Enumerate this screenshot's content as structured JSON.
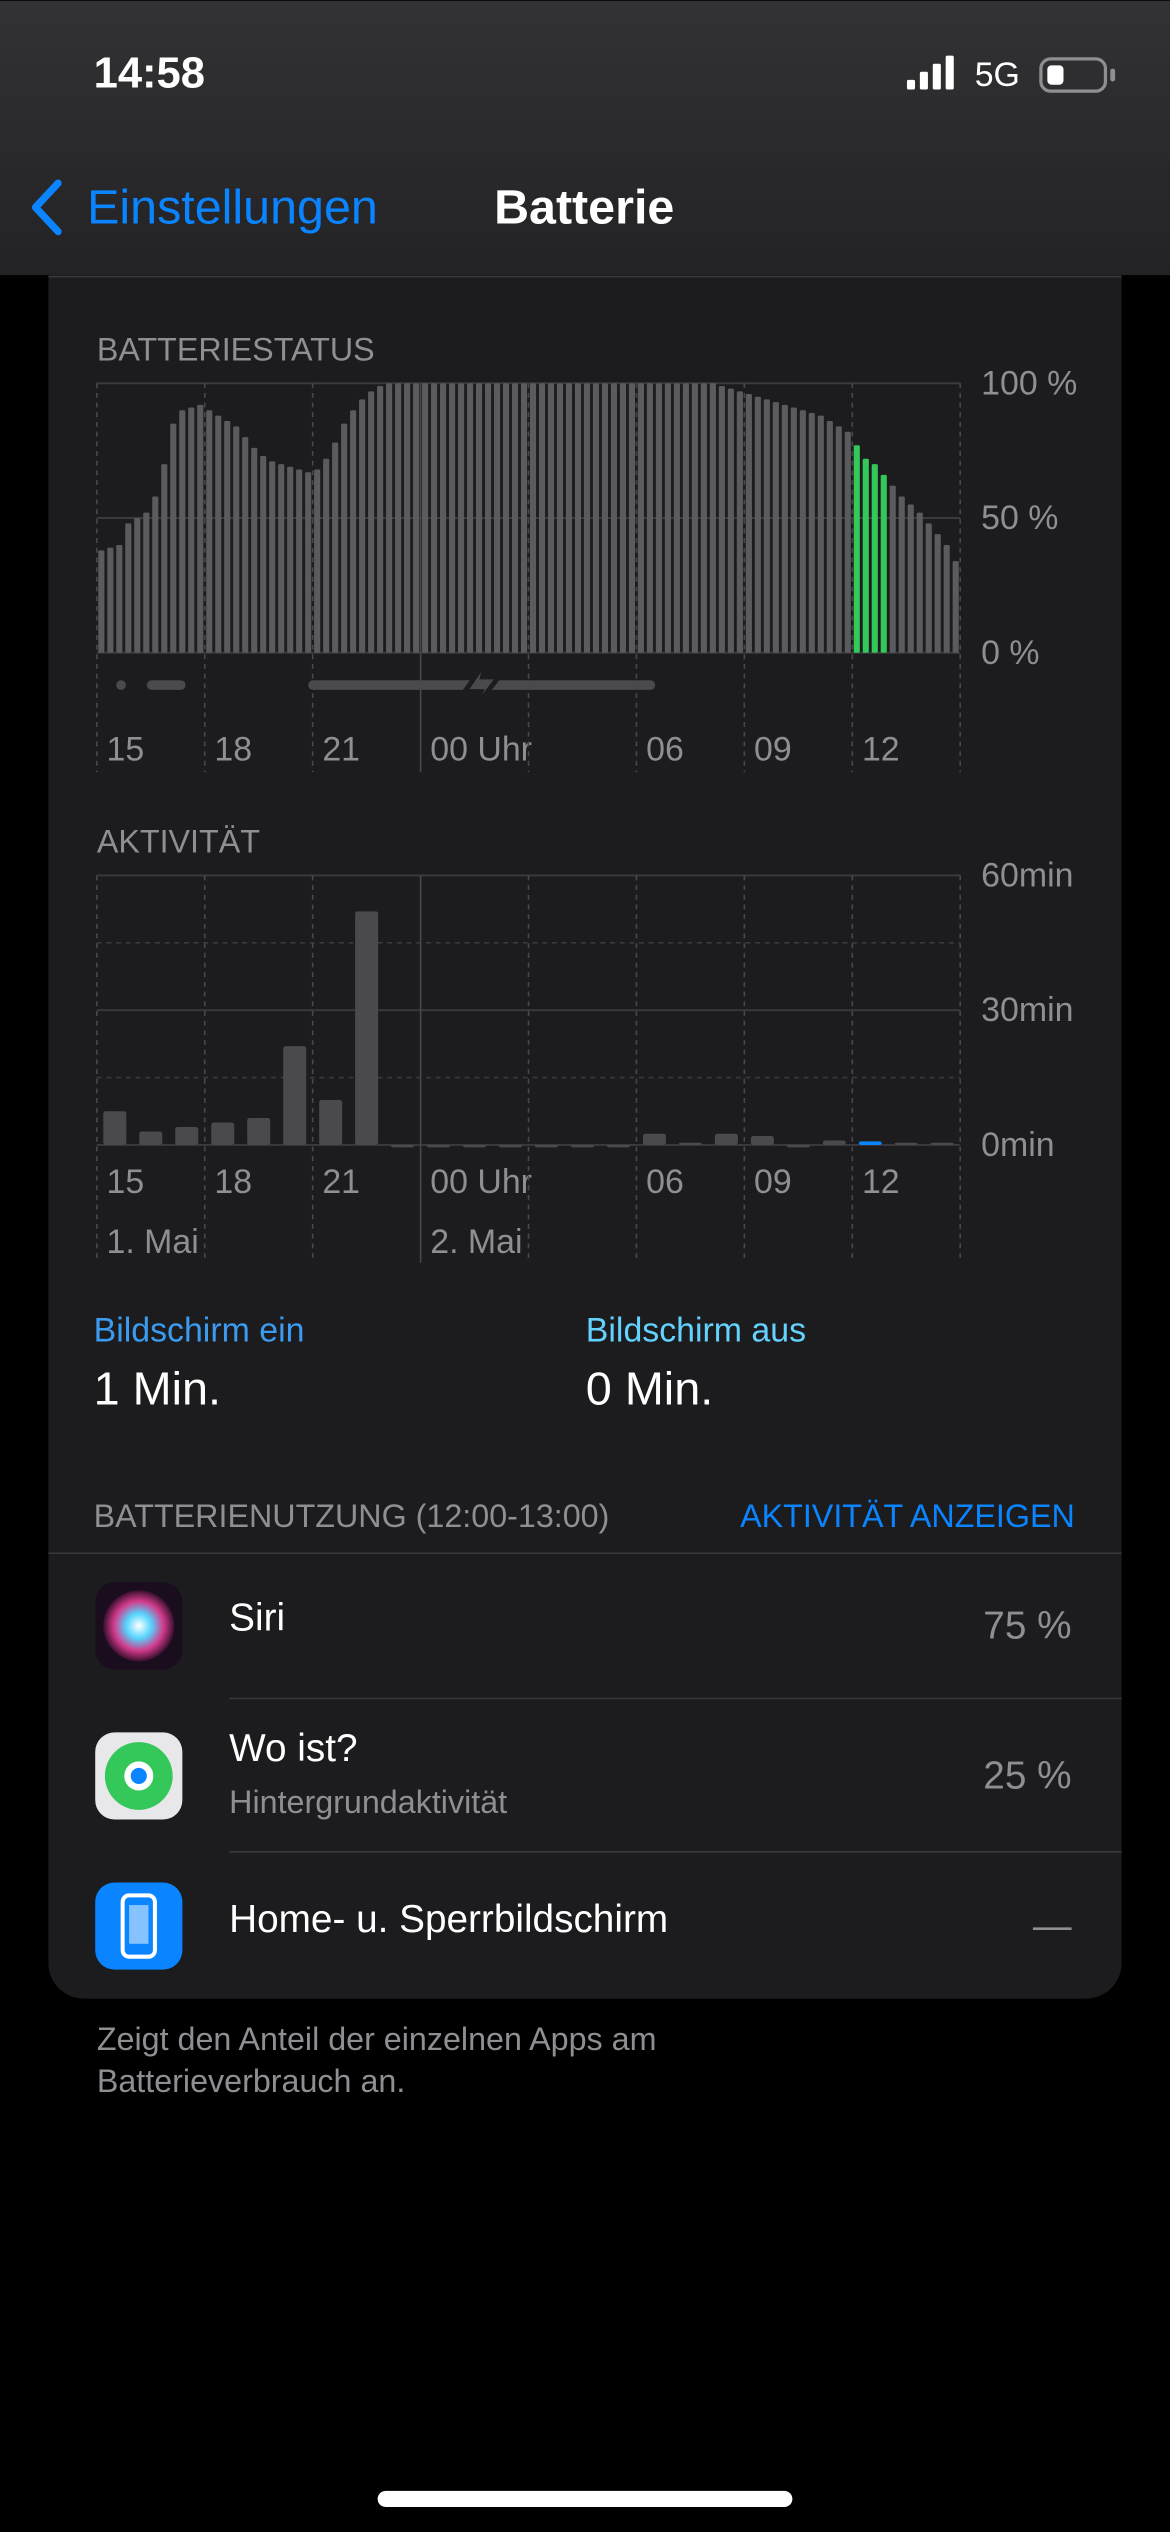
{
  "status_bar": {
    "time": "14:58",
    "network": "5G"
  },
  "nav": {
    "back": "Einstellungen",
    "title": "Batterie"
  },
  "chart_data": [
    {
      "type": "bar",
      "title": "BATTERIESTATUS",
      "x_labels": [
        "15",
        "18",
        "21",
        "00 Uhr",
        null,
        "06",
        "09",
        "12",
        null
      ],
      "series": [
        {
          "color": "#5b5b5f",
          "values": [
            38,
            39,
            40,
            48,
            50,
            52,
            58,
            70,
            85,
            90,
            91,
            92,
            90,
            88,
            86,
            84,
            80,
            76,
            73,
            71,
            70,
            69,
            68,
            67,
            68,
            72,
            78,
            85,
            90,
            94,
            97,
            99,
            100,
            100,
            100,
            100,
            100,
            100,
            100,
            100,
            100,
            100,
            100,
            100,
            100,
            100,
            100,
            100,
            100,
            100,
            100,
            100,
            100,
            100,
            100,
            100,
            100,
            100,
            100,
            100,
            100,
            100,
            100,
            100,
            100,
            100,
            100,
            100,
            100,
            99,
            98,
            97,
            96,
            95,
            94,
            93,
            92,
            91,
            90,
            89,
            88,
            86,
            84,
            82,
            null,
            null,
            null,
            null,
            62,
            58,
            55,
            52,
            48,
            44,
            40,
            34
          ]
        },
        {
          "color": "#34c759",
          "values": [
            null,
            null,
            null,
            null,
            null,
            null,
            null,
            null,
            null,
            null,
            null,
            null,
            null,
            null,
            null,
            null,
            null,
            null,
            null,
            null,
            null,
            null,
            null,
            null,
            null,
            null,
            null,
            null,
            null,
            null,
            null,
            null,
            null,
            null,
            null,
            null,
            null,
            null,
            null,
            null,
            null,
            null,
            null,
            null,
            null,
            null,
            null,
            null,
            null,
            null,
            null,
            null,
            null,
            null,
            null,
            null,
            null,
            null,
            null,
            null,
            null,
            null,
            null,
            null,
            null,
            null,
            null,
            null,
            null,
            null,
            null,
            null,
            null,
            null,
            null,
            null,
            null,
            null,
            null,
            null,
            null,
            null,
            null,
            null,
            77,
            72,
            70,
            66,
            null,
            null,
            null,
            null,
            null,
            null,
            null,
            null
          ]
        }
      ],
      "ylim": [
        0,
        100
      ],
      "yticks": [
        {
          "value": 0,
          "label": "0 %"
        },
        {
          "value": 50,
          "label": "50 %"
        },
        {
          "value": 100,
          "label": "100 %"
        }
      ],
      "grid": true
    },
    {
      "type": "bar",
      "title": "AKTIVITÄT",
      "x_labels": [
        "15",
        "18",
        "21",
        "00 Uhr",
        null,
        "06",
        "09",
        "12",
        null
      ],
      "day_labels": [
        "1. Mai",
        "2. Mai"
      ],
      "series": [
        {
          "color": "#4a4a4d",
          "values": [
            7.5,
            3,
            4,
            5,
            6,
            22,
            10,
            52,
            0,
            0,
            0,
            0,
            0,
            0,
            0,
            2.5,
            0.5,
            2.5,
            2,
            0,
            1,
            null,
            0.5,
            0.5
          ]
        },
        {
          "color": "#0a84ff",
          "values": [
            null,
            null,
            null,
            null,
            null,
            null,
            null,
            null,
            null,
            null,
            null,
            null,
            null,
            null,
            null,
            null,
            null,
            null,
            null,
            null,
            null,
            0.8,
            null,
            null
          ]
        }
      ],
      "ylim": [
        0,
        60
      ],
      "yticks": [
        {
          "value": 0,
          "label": "0min"
        },
        {
          "value": 30,
          "label": "30min"
        },
        {
          "value": 60,
          "label": "60min"
        }
      ],
      "grid": true
    }
  ],
  "screen_on": {
    "label": "Bildschirm ein",
    "value": "1 Min."
  },
  "screen_off": {
    "label": "Bildschirm aus",
    "value": "0 Min."
  },
  "usage": {
    "header": "BATTERIENUTZUNG (12:00-13:00)",
    "action": "AKTIVITÄT ANZEIGEN",
    "rows": [
      {
        "app": "Siri",
        "percent": "75 %"
      },
      {
        "app": "Wo ist?",
        "detail": "Hintergrundaktivität",
        "percent": "25 %"
      },
      {
        "app": "Home- u. Sperrbildschirm",
        "percent": "—"
      }
    ]
  },
  "footer": [
    "Zeigt den Anteil der einzelnen Apps am",
    "Batterieverbrauch an."
  ]
}
